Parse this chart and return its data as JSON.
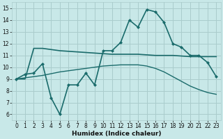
{
  "background_color": "#c8e8e8",
  "grid_color": "#aacccc",
  "line_color": "#1a6b6b",
  "xlabel": "Humidex (Indice chaleur)",
  "xlim": [
    -0.5,
    23.5
  ],
  "ylim": [
    5.5,
    15.5
  ],
  "yticks": [
    6,
    7,
    8,
    9,
    10,
    11,
    12,
    13,
    14,
    15
  ],
  "xticks": [
    0,
    1,
    2,
    3,
    4,
    5,
    6,
    7,
    8,
    9,
    10,
    11,
    12,
    13,
    14,
    15,
    16,
    17,
    18,
    19,
    20,
    21,
    22,
    23
  ],
  "line1_x": [
    0,
    1,
    2,
    3,
    4,
    5,
    6,
    7,
    8,
    9,
    10,
    11,
    12,
    13,
    14,
    15,
    16,
    17,
    18,
    19,
    20,
    21,
    22,
    23
  ],
  "line1_y": [
    9.0,
    9.4,
    9.5,
    10.3,
    7.4,
    6.0,
    8.5,
    8.5,
    9.5,
    8.5,
    11.4,
    11.4,
    12.1,
    14.0,
    13.4,
    14.9,
    14.7,
    13.8,
    12.0,
    11.7,
    11.0,
    11.0,
    10.4,
    9.2
  ],
  "line2_x": [
    0,
    1,
    2,
    3,
    4,
    5,
    6,
    7,
    8,
    9,
    10,
    11,
    12,
    13,
    14,
    15,
    16,
    17,
    18,
    19,
    20,
    21,
    22,
    23
  ],
  "line2_y": [
    9.0,
    9.0,
    11.6,
    11.6,
    11.5,
    11.4,
    11.35,
    11.3,
    11.25,
    11.2,
    11.15,
    11.1,
    11.1,
    11.1,
    11.1,
    11.05,
    11.0,
    11.0,
    11.0,
    10.95,
    10.9,
    10.9,
    10.9,
    10.9
  ],
  "line3_x": [
    0,
    1,
    2,
    3,
    4,
    5,
    6,
    7,
    8,
    9,
    10,
    11,
    12,
    13,
    14,
    15,
    16,
    17,
    18,
    19,
    20,
    21,
    22,
    23
  ],
  "line3_y": [
    9.0,
    9.1,
    9.2,
    9.3,
    9.45,
    9.6,
    9.7,
    9.8,
    9.9,
    10.0,
    10.1,
    10.15,
    10.2,
    10.2,
    10.2,
    10.1,
    9.9,
    9.6,
    9.2,
    8.8,
    8.4,
    8.1,
    7.85,
    7.7
  ]
}
